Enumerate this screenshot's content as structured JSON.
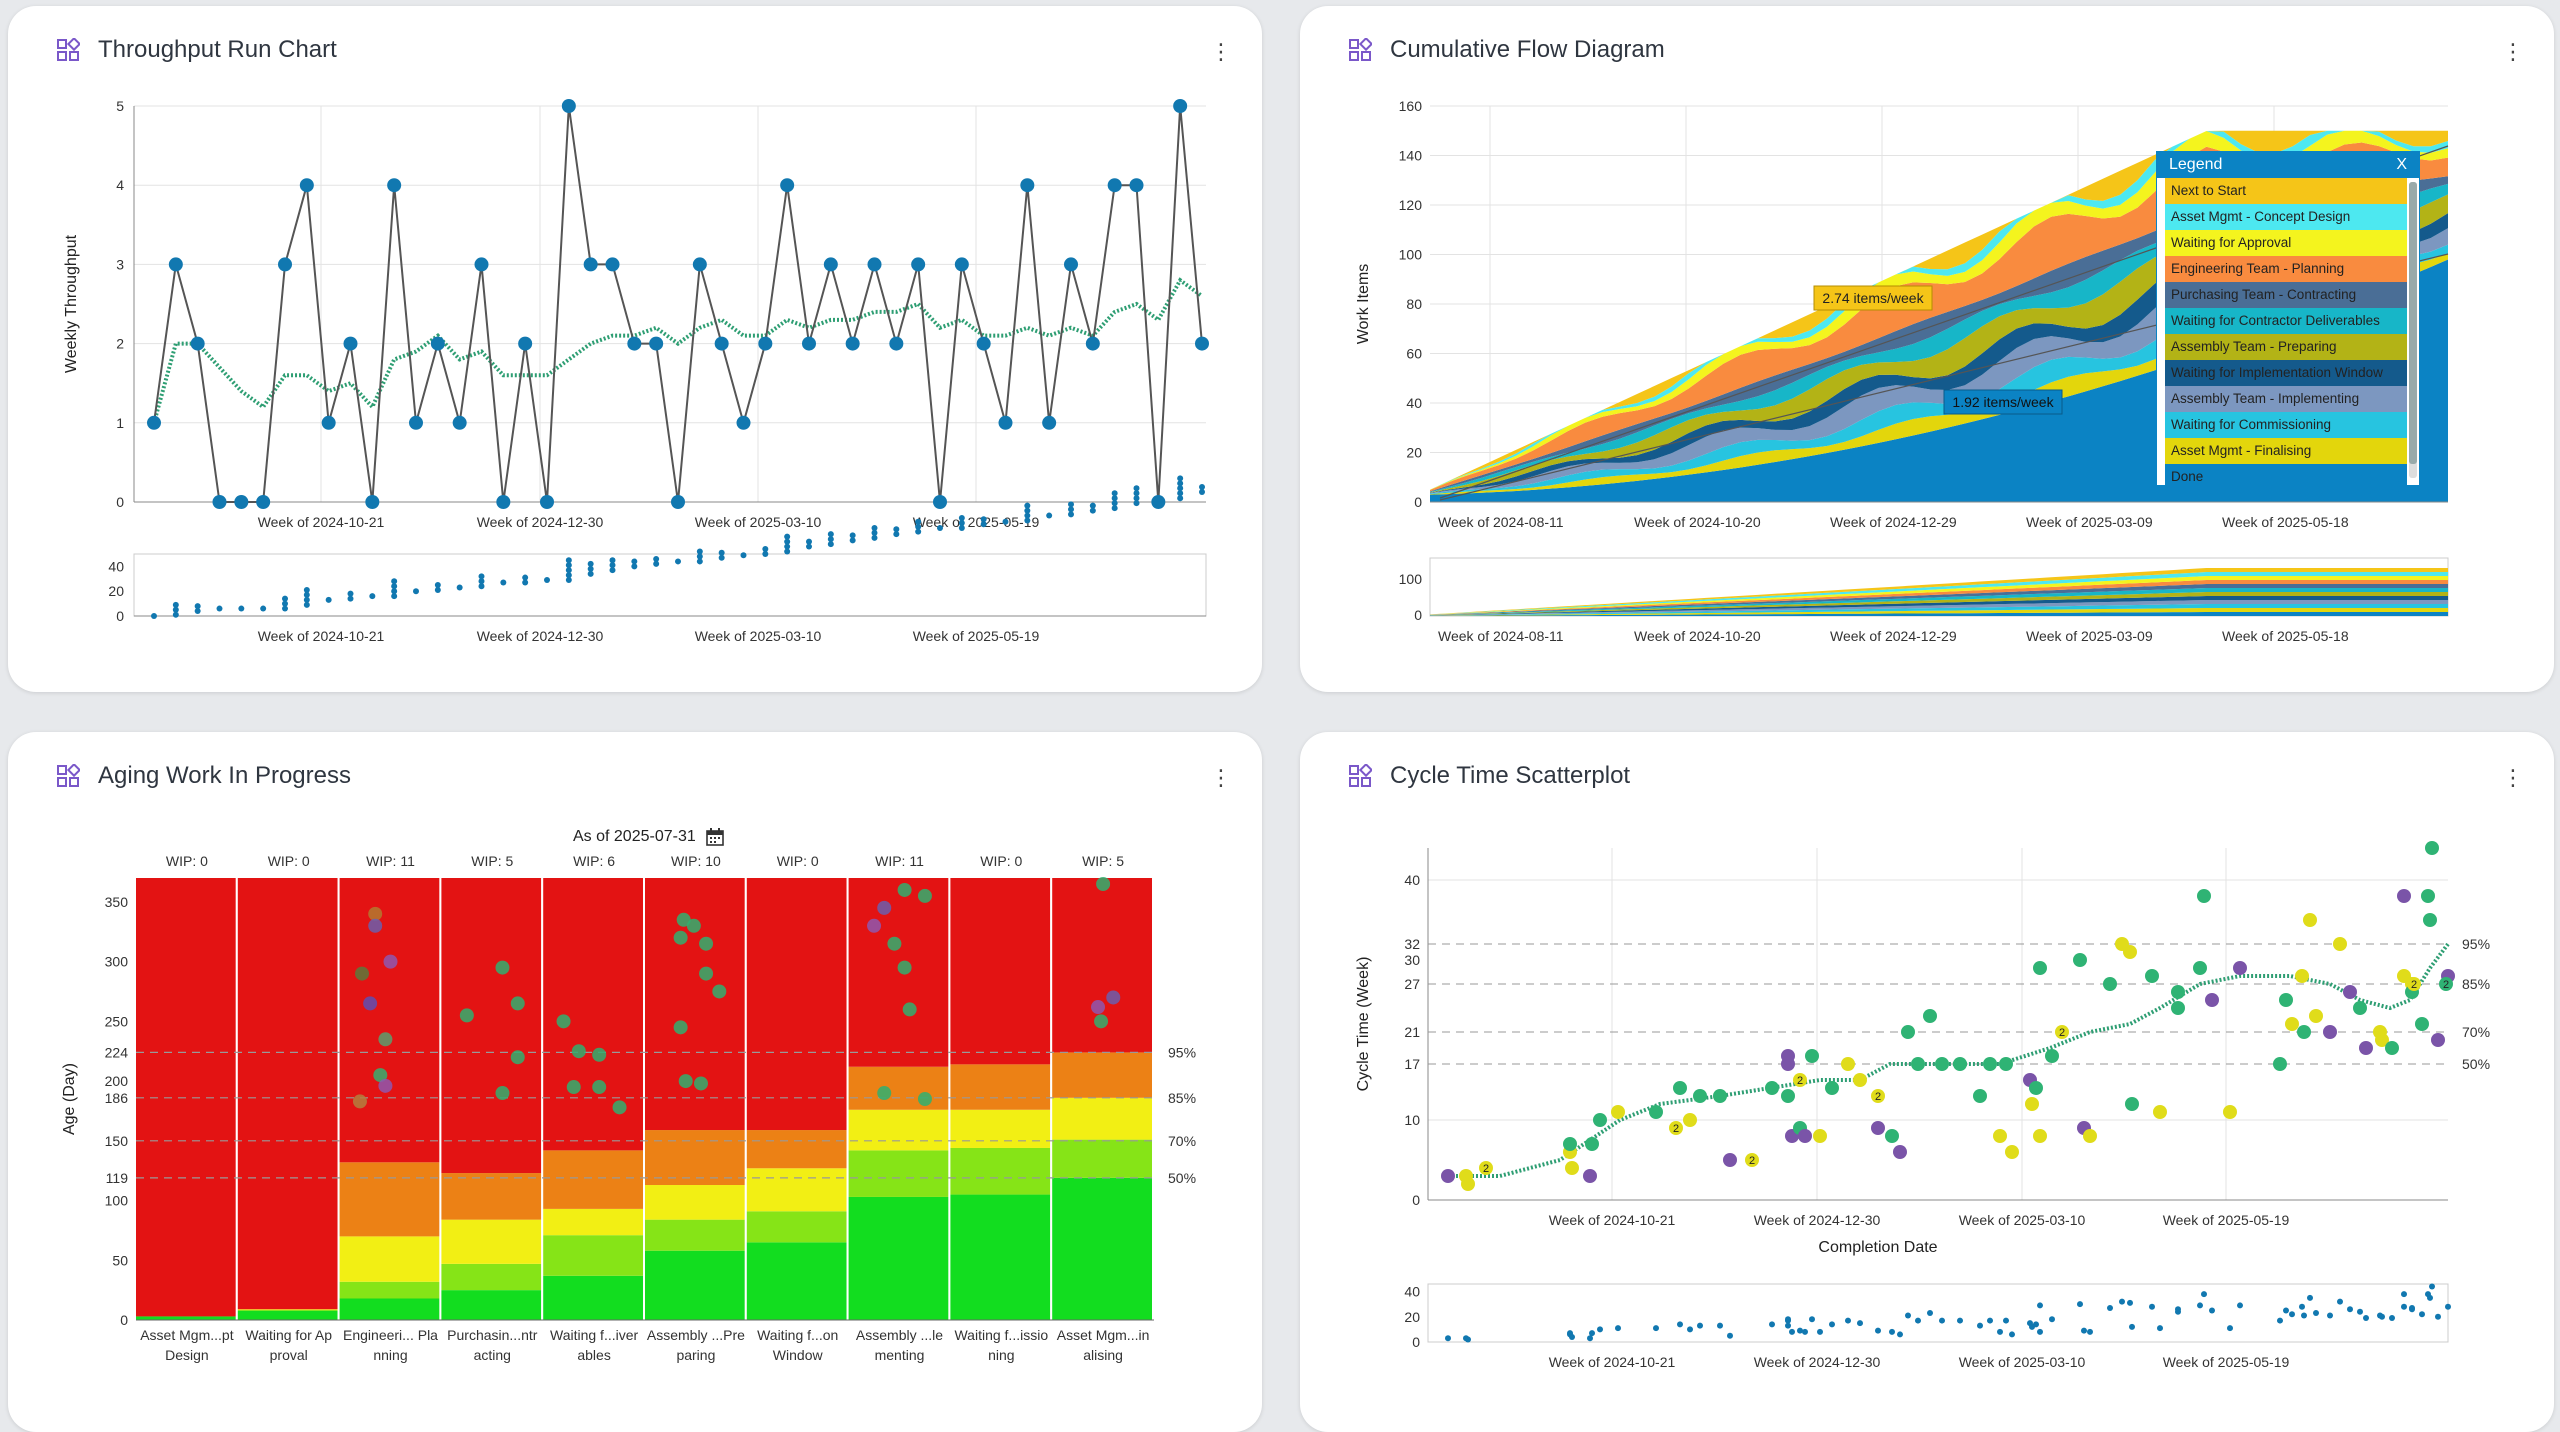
{
  "panels": {
    "throughput": {
      "title": "Throughput Run Chart",
      "icon": "dashboard-widget-icon",
      "menu_icon": "more-vert-icon",
      "ylabel": "Weekly Throughput"
    },
    "cfd": {
      "title": "Cumulative Flow Diagram",
      "icon": "dashboard-widget-icon",
      "menu_icon": "more-vert-icon",
      "ylabel": "Work Items",
      "rate_high": "2.74 items/week",
      "rate_low": "1.92 items/week",
      "legend_title": "Legend",
      "legend_close": "X",
      "legend_items": [
        {
          "label": "Next to Start",
          "color": "#f5c518"
        },
        {
          "label": "Asset Mgmt - Concept Design",
          "color": "#4de8f0"
        },
        {
          "label": "Waiting for Approval",
          "color": "#f4f41e"
        },
        {
          "label": "Engineering Team - Planning",
          "color": "#f98b3f"
        },
        {
          "label": "Purchasing Team - Contracting",
          "color": "#4a6e96"
        },
        {
          "label": "Waiting for Contractor Deliverables",
          "color": "#17b6c8"
        },
        {
          "label": "Assembly Team - Preparing",
          "color": "#b3b316"
        },
        {
          "label": "Waiting for Implementation Window",
          "color": "#145a8c"
        },
        {
          "label": "Assembly Team - Implementing",
          "color": "#7c97c0"
        },
        {
          "label": "Waiting for Commissioning",
          "color": "#27c4e0"
        },
        {
          "label": "Asset Mgmt - Finalising",
          "color": "#e3d60c"
        },
        {
          "label": "Done",
          "color": "#0b83c4"
        }
      ]
    },
    "aging": {
      "title": "Aging Work In Progress",
      "icon": "dashboard-widget-icon",
      "menu_icon": "more-vert-icon",
      "as_of": "As of 2025-07-31",
      "calendar_icon": "calendar-icon",
      "ylabel": "Age (Day)"
    },
    "cycle": {
      "title": "Cycle Time Scatterplot",
      "icon": "dashboard-widget-icon",
      "menu_icon": "more-vert-icon",
      "ylabel": "Cycle Time (Week)",
      "xlabel": "Completion Date"
    }
  },
  "chart_data": [
    {
      "id": "throughput",
      "type": "line",
      "title": "Throughput Run Chart",
      "ylabel": "Weekly Throughput",
      "ylim": [
        0,
        5
      ],
      "yticks": [
        "0",
        "1",
        "2",
        "3",
        "4",
        "5"
      ],
      "xticks": [
        "Week of 2024-10-21",
        "Week of 2024-12-30",
        "Week of 2025-03-10",
        "Week of 2025-05-19"
      ],
      "values": [
        1,
        3,
        2,
        0,
        0,
        0,
        3,
        4,
        1,
        2,
        0,
        4,
        1,
        2,
        1,
        3,
        0,
        2,
        0,
        5,
        3,
        3,
        2,
        2,
        0,
        3,
        2,
        1,
        2,
        4,
        2,
        3,
        2,
        3,
        2,
        3,
        0,
        3,
        2,
        1,
        4,
        1,
        3,
        2,
        4,
        4,
        0,
        5,
        2
      ],
      "moving_average": [
        1,
        2,
        2,
        1.7,
        1.4,
        1.2,
        1.6,
        1.6,
        1.4,
        1.5,
        1.2,
        1.8,
        1.9,
        2.1,
        1.8,
        1.9,
        1.6,
        1.6,
        1.6,
        1.8,
        2,
        2.1,
        2.1,
        2.2,
        2,
        2.2,
        2.3,
        2.1,
        2.1,
        2.3,
        2.2,
        2.3,
        2.3,
        2.4,
        2.4,
        2.5,
        2.2,
        2.3,
        2.1,
        2.1,
        2.2,
        2.1,
        2.2,
        2.1,
        2.4,
        2.5,
        2.3,
        2.8,
        2.6
      ],
      "overview": {
        "ylim": [
          0,
          50
        ],
        "yticks": [
          "0",
          "20",
          "40"
        ]
      }
    },
    {
      "id": "cfd",
      "type": "area",
      "title": "Cumulative Flow Diagram",
      "ylabel": "Work Items",
      "ylim": [
        0,
        160
      ],
      "yticks": [
        "0",
        "20",
        "40",
        "60",
        "80",
        "100",
        "120",
        "140",
        "160"
      ],
      "xticks": [
        "Week of 2024-08-11",
        "Week of 2024-10-20",
        "Week of 2024-12-29",
        "Week of 2025-03-09",
        "Week of 2025-05-18"
      ],
      "overview": {
        "yticks": [
          "0",
          "100"
        ]
      }
    },
    {
      "id": "aging",
      "type": "bar",
      "title": "Aging Work In Progress",
      "ylabel": "Age (Day)",
      "ylim": [
        0,
        370
      ],
      "yticks": [
        "0",
        "50",
        "100",
        "119",
        "150",
        "186",
        "200",
        "224",
        "250",
        "300",
        "350"
      ],
      "percentiles": [
        {
          "label": "95%",
          "value": 224
        },
        {
          "label": "85%",
          "value": 186
        },
        {
          "label": "70%",
          "value": 150
        },
        {
          "label": "50%",
          "value": 119
        }
      ],
      "columns": [
        {
          "wip": "WIP: 0",
          "label1": "Asset Mgm...pt",
          "label2": "Design",
          "bands": [
            3,
            3,
            3,
            3
          ]
        },
        {
          "wip": "WIP: 0",
          "label1": "Waiting for Ap",
          "label2": "proval",
          "bands": [
            8,
            8,
            9,
            9
          ]
        },
        {
          "wip": "WIP: 11",
          "label1": "Engineeri... Pla",
          "label2": "nning",
          "bands": [
            18,
            32,
            70,
            132
          ]
        },
        {
          "wip": "WIP: 5",
          "label1": "Purchasin...ntr",
          "label2": "acting",
          "bands": [
            25,
            47,
            84,
            123
          ]
        },
        {
          "wip": "WIP: 6",
          "label1": "Waiting f...iver",
          "label2": "ables",
          "bands": [
            37,
            71,
            93,
            142
          ]
        },
        {
          "wip": "WIP: 10",
          "label1": "Assembly ...Pre",
          "label2": "paring",
          "bands": [
            58,
            84,
            113,
            159
          ]
        },
        {
          "wip": "WIP: 0",
          "label1": "Waiting f...on",
          "label2": "Window",
          "bands": [
            65,
            91,
            127,
            159
          ]
        },
        {
          "wip": "WIP: 11",
          "label1": "Assembly ...le",
          "label2": "menting",
          "bands": [
            103,
            142,
            176,
            212
          ]
        },
        {
          "wip": "WIP: 0",
          "label1": "Waiting f...issio",
          "label2": "ning",
          "bands": [
            105,
            144,
            176,
            214
          ]
        },
        {
          "wip": "WIP: 5",
          "label1": "Asset Mgm...in",
          "label2": "alising",
          "bands": [
            119,
            151,
            186,
            224
          ]
        }
      ]
    },
    {
      "id": "cycle",
      "type": "scatter",
      "title": "Cycle Time Scatterplot",
      "ylabel": "Cycle Time (Week)",
      "xlabel": "Completion Date",
      "ylim": [
        0,
        44
      ],
      "yticks": [
        "0",
        "10",
        "17",
        "21",
        "27",
        "30",
        "32",
        "40"
      ],
      "percentiles": [
        {
          "label": "95%",
          "value": 32
        },
        {
          "label": "85%",
          "value": 27
        },
        {
          "label": "70%",
          "value": 21
        },
        {
          "label": "50%",
          "value": 17
        }
      ],
      "xticks": [
        "Week of 2024-10-21",
        "Week of 2024-12-30",
        "Week of 2025-03-10",
        "Week of 2025-05-19"
      ],
      "overview": {
        "yticks": [
          "0",
          "20",
          "40"
        ]
      }
    }
  ]
}
